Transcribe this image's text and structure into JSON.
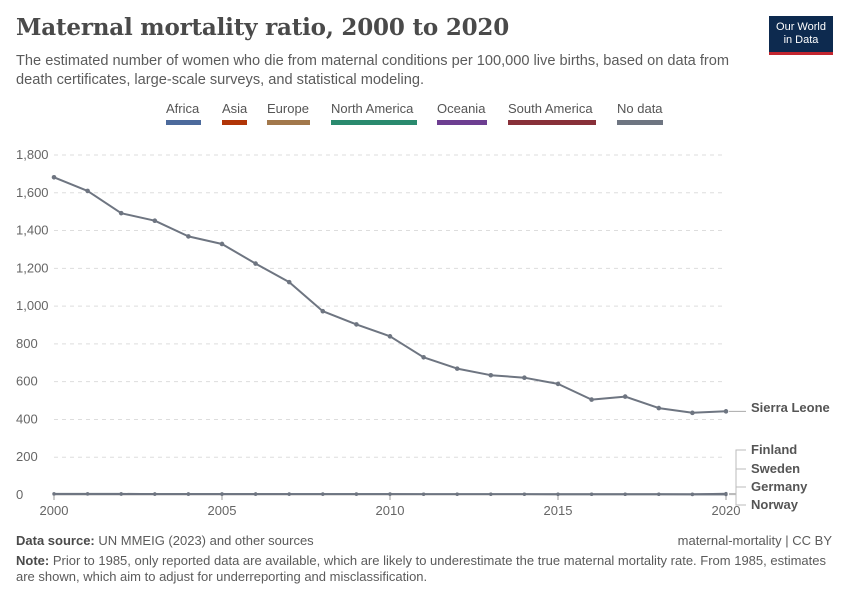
{
  "header": {
    "title": "Maternal mortality ratio, 2000 to 2020",
    "subtitle": "The estimated number of women who die from maternal conditions per 100,000 live births, based on data from death certificates, large-scale surveys, and statistical modeling.",
    "logo_line1": "Our World",
    "logo_line2": "in Data",
    "logo_colors": {
      "background": "#0d2a4f",
      "accent": "#c3262f"
    }
  },
  "legend": [
    {
      "label": "Africa",
      "color": "#4c6a9c"
    },
    {
      "label": "Asia",
      "color": "#b13507"
    },
    {
      "label": "Europe",
      "color": "#a2784b"
    },
    {
      "label": "North America",
      "color": "#2a8a6e"
    },
    {
      "label": "Oceania",
      "color": "#6d3e91"
    },
    {
      "label": "South America",
      "color": "#883039"
    },
    {
      "label": "No data",
      "color": "#6e7581"
    }
  ],
  "chart_data": {
    "type": "line",
    "title": "Maternal mortality ratio, 2000 to 2020",
    "xlabel": "",
    "ylabel": "",
    "xlim": [
      2000,
      2020
    ],
    "ylim": [
      0,
      1800
    ],
    "yticks": [
      0,
      200,
      400,
      600,
      800,
      1000,
      1200,
      1400,
      1600,
      1800
    ],
    "ytick_labels": [
      "0",
      "200",
      "400",
      "600",
      "800",
      "1,000",
      "1,200",
      "1,400",
      "1,600",
      "1,800"
    ],
    "xticks": [
      2000,
      2005,
      2010,
      2015,
      2020
    ],
    "xtick_labels": [
      "2000",
      "2005",
      "2010",
      "2015",
      "2020"
    ],
    "grid": "horizontal dashed",
    "x": [
      2000,
      2001,
      2002,
      2003,
      2004,
      2005,
      2006,
      2007,
      2008,
      2009,
      2010,
      2011,
      2012,
      2013,
      2014,
      2015,
      2016,
      2017,
      2018,
      2019,
      2020
    ],
    "series": [
      {
        "name": "Sierra Leone",
        "color": "#6e7581",
        "values": [
          1682,
          1610,
          1492,
          1452,
          1369,
          1329,
          1225,
          1127,
          973,
          903,
          840,
          729,
          669,
          634,
          621,
          588,
          505,
          521,
          460,
          435,
          443
        ]
      },
      {
        "name": "Finland",
        "color": "#6e7581",
        "values": [
          5,
          5,
          5,
          4,
          4,
          4,
          4,
          4,
          4,
          4,
          4,
          4,
          4,
          4,
          4,
          4,
          4,
          4,
          4,
          4,
          8
        ]
      },
      {
        "name": "Sweden",
        "color": "#6e7581",
        "values": [
          5,
          5,
          4,
          4,
          4,
          4,
          4,
          4,
          4,
          4,
          4,
          4,
          4,
          4,
          4,
          4,
          4,
          4,
          4,
          4,
          5
        ]
      },
      {
        "name": "Germany",
        "color": "#6e7581",
        "values": [
          7,
          7,
          7,
          6,
          6,
          6,
          6,
          6,
          6,
          6,
          6,
          5,
          5,
          5,
          5,
          5,
          5,
          5,
          5,
          4,
          4
        ]
      },
      {
        "name": "Norway",
        "color": "#6e7581",
        "values": [
          6,
          6,
          6,
          6,
          6,
          6,
          6,
          5,
          5,
          5,
          5,
          4,
          4,
          4,
          4,
          3,
          3,
          3,
          3,
          2,
          2
        ]
      }
    ]
  },
  "footer": {
    "source_label": "Data source:",
    "source_text": "UN MMEIG (2023) and other sources",
    "right_text": "maternal-mortality | CC BY",
    "note_label": "Note:",
    "note_text": "Prior to 1985, only reported data are available, which are likely to underestimate the true maternal mortality rate. From 1985, estimates are shown, which aim to adjust for underreporting and misclassification."
  }
}
